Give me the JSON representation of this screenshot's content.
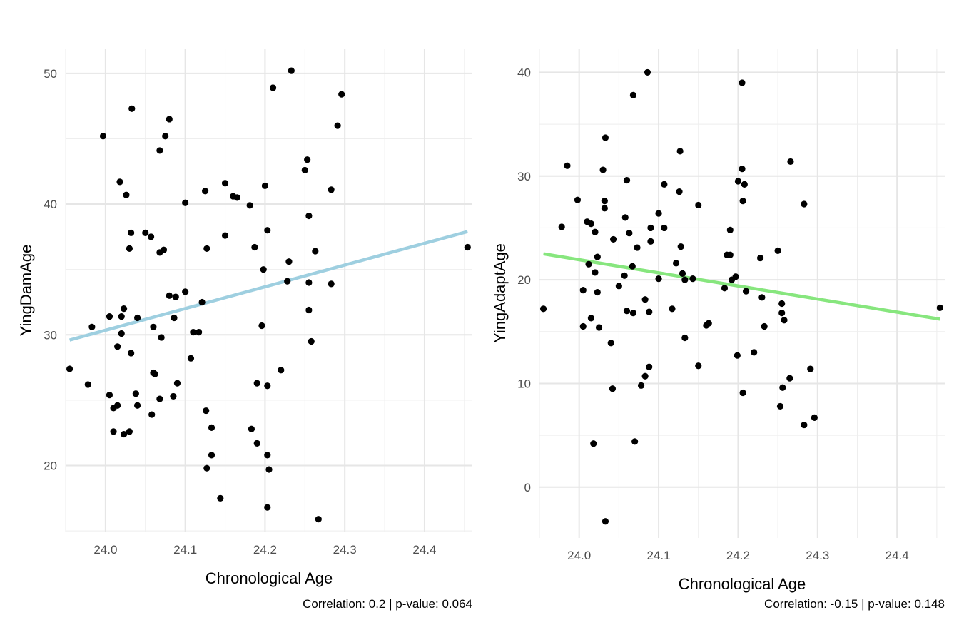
{
  "chart_data": [
    {
      "type": "scatter",
      "xlabel": "Chronological Age",
      "ylabel": "YingDamAge",
      "caption": "Correlation: 0.2 | p-value: 0.064",
      "xlim": [
        23.95,
        24.46
      ],
      "ylim": [
        14.9,
        51.9
      ],
      "x_ticks": [
        "24.0",
        "24.1",
        "24.2",
        "24.3",
        "24.4"
      ],
      "x_tick_values": [
        24.0,
        24.1,
        24.2,
        24.3,
        24.4
      ],
      "y_ticks": [
        "20",
        "30",
        "40",
        "50"
      ],
      "y_tick_values": [
        20,
        30,
        40,
        50
      ],
      "grid": true,
      "fit_line": {
        "color": "#9ecfe0",
        "x": [
          23.955,
          24.454
        ],
        "y": [
          29.6,
          37.9
        ]
      },
      "points": [
        [
          23.955,
          27.4
        ],
        [
          23.978,
          26.2
        ],
        [
          23.983,
          30.6
        ],
        [
          23.997,
          45.2
        ],
        [
          24.005,
          31.4
        ],
        [
          24.005,
          25.4
        ],
        [
          24.01,
          24.4
        ],
        [
          24.01,
          22.6
        ],
        [
          24.015,
          24.6
        ],
        [
          24.015,
          29.1
        ],
        [
          24.018,
          41.7
        ],
        [
          24.02,
          30.1
        ],
        [
          24.02,
          31.4
        ],
        [
          24.023,
          32.0
        ],
        [
          24.023,
          22.4
        ],
        [
          24.026,
          40.7
        ],
        [
          24.03,
          36.6
        ],
        [
          24.03,
          22.6
        ],
        [
          24.032,
          37.8
        ],
        [
          24.032,
          28.6
        ],
        [
          24.033,
          47.3
        ],
        [
          24.038,
          25.5
        ],
        [
          24.04,
          31.3
        ],
        [
          24.04,
          24.6
        ],
        [
          24.05,
          37.8
        ],
        [
          24.057,
          37.5
        ],
        [
          24.058,
          23.9
        ],
        [
          24.06,
          27.1
        ],
        [
          24.06,
          30.6
        ],
        [
          24.062,
          27.0
        ],
        [
          24.068,
          25.1
        ],
        [
          24.068,
          44.1
        ],
        [
          24.068,
          36.3
        ],
        [
          24.07,
          29.8
        ],
        [
          24.073,
          36.5
        ],
        [
          24.075,
          45.2
        ],
        [
          24.08,
          46.5
        ],
        [
          24.08,
          33.0
        ],
        [
          24.085,
          25.3
        ],
        [
          24.086,
          31.3
        ],
        [
          24.088,
          32.9
        ],
        [
          24.09,
          26.3
        ],
        [
          24.1,
          40.1
        ],
        [
          24.1,
          33.3
        ],
        [
          24.107,
          28.2
        ],
        [
          24.11,
          30.2
        ],
        [
          24.117,
          30.2
        ],
        [
          24.121,
          32.5
        ],
        [
          24.125,
          41.0
        ],
        [
          24.126,
          24.2
        ],
        [
          24.127,
          36.6
        ],
        [
          24.127,
          19.8
        ],
        [
          24.133,
          22.9
        ],
        [
          24.133,
          20.8
        ],
        [
          24.144,
          17.5
        ],
        [
          24.15,
          41.6
        ],
        [
          24.15,
          37.6
        ],
        [
          24.16,
          40.6
        ],
        [
          24.165,
          40.5
        ],
        [
          24.181,
          39.9
        ],
        [
          24.183,
          22.8
        ],
        [
          24.187,
          36.7
        ],
        [
          24.19,
          26.3
        ],
        [
          24.19,
          21.7
        ],
        [
          24.196,
          30.7
        ],
        [
          24.198,
          35.0
        ],
        [
          24.2,
          41.4
        ],
        [
          24.203,
          38.0
        ],
        [
          24.203,
          20.8
        ],
        [
          24.203,
          26.1
        ],
        [
          24.205,
          19.7
        ],
        [
          24.203,
          16.8
        ],
        [
          24.21,
          48.9
        ],
        [
          24.22,
          27.3
        ],
        [
          24.228,
          34.1
        ],
        [
          24.23,
          35.6
        ],
        [
          24.233,
          50.2
        ],
        [
          24.25,
          42.6
        ],
        [
          24.253,
          43.4
        ],
        [
          24.255,
          39.1
        ],
        [
          24.255,
          34.0
        ],
        [
          24.255,
          31.9
        ],
        [
          24.258,
          29.5
        ],
        [
          24.263,
          36.4
        ],
        [
          24.267,
          15.9
        ],
        [
          24.283,
          41.1
        ],
        [
          24.283,
          33.9
        ],
        [
          24.291,
          46.0
        ],
        [
          24.296,
          48.4
        ],
        [
          24.454,
          36.7
        ]
      ]
    },
    {
      "type": "scatter",
      "xlabel": "Chronological Age",
      "ylabel": "YingAdaptAge",
      "caption": "Correlation: -0.15 | p-value: 0.148",
      "xlim": [
        23.95,
        24.46
      ],
      "ylim": [
        -4.9,
        42.3
      ],
      "x_ticks": [
        "24.0",
        "24.1",
        "24.2",
        "24.3",
        "24.4"
      ],
      "x_tick_values": [
        24.0,
        24.1,
        24.2,
        24.3,
        24.4
      ],
      "y_ticks": [
        "0",
        "10",
        "20",
        "30",
        "40"
      ],
      "y_tick_values": [
        0,
        10,
        20,
        30,
        40
      ],
      "grid": true,
      "fit_line": {
        "color": "#87e67e",
        "x": [
          23.955,
          24.454
        ],
        "y": [
          22.5,
          16.2
        ]
      },
      "points": [
        [
          23.955,
          17.2
        ],
        [
          23.978,
          25.1
        ],
        [
          23.985,
          31.0
        ],
        [
          23.998,
          27.7
        ],
        [
          24.005,
          19.0
        ],
        [
          24.005,
          15.5
        ],
        [
          24.01,
          25.6
        ],
        [
          24.012,
          21.5
        ],
        [
          24.015,
          25.4
        ],
        [
          24.015,
          16.3
        ],
        [
          24.018,
          4.2
        ],
        [
          24.02,
          24.6
        ],
        [
          24.02,
          20.7
        ],
        [
          24.023,
          22.2
        ],
        [
          24.023,
          18.8
        ],
        [
          24.025,
          15.4
        ],
        [
          24.03,
          30.6
        ],
        [
          24.032,
          27.6
        ],
        [
          24.032,
          26.9
        ],
        [
          24.033,
          33.7
        ],
        [
          24.033,
          -3.3
        ],
        [
          24.04,
          13.9
        ],
        [
          24.042,
          9.5
        ],
        [
          24.043,
          23.9
        ],
        [
          24.05,
          19.4
        ],
        [
          24.057,
          20.4
        ],
        [
          24.058,
          26.0
        ],
        [
          24.06,
          29.6
        ],
        [
          24.06,
          17.0
        ],
        [
          24.063,
          24.5
        ],
        [
          24.067,
          21.3
        ],
        [
          24.068,
          37.8
        ],
        [
          24.068,
          16.8
        ],
        [
          24.07,
          4.4
        ],
        [
          24.073,
          23.1
        ],
        [
          24.078,
          9.8
        ],
        [
          24.083,
          18.1
        ],
        [
          24.083,
          10.7
        ],
        [
          24.086,
          40.0
        ],
        [
          24.088,
          11.6
        ],
        [
          24.088,
          16.9
        ],
        [
          24.09,
          23.7
        ],
        [
          24.09,
          25.0
        ],
        [
          24.1,
          26.4
        ],
        [
          24.1,
          20.1
        ],
        [
          24.107,
          29.2
        ],
        [
          24.107,
          25.0
        ],
        [
          24.117,
          17.2
        ],
        [
          24.122,
          21.6
        ],
        [
          24.126,
          28.5
        ],
        [
          24.127,
          32.4
        ],
        [
          24.128,
          23.2
        ],
        [
          24.13,
          20.6
        ],
        [
          24.133,
          20.0
        ],
        [
          24.133,
          14.4
        ],
        [
          24.143,
          20.1
        ],
        [
          24.15,
          27.2
        ],
        [
          24.15,
          11.7
        ],
        [
          24.16,
          15.6
        ],
        [
          24.163,
          15.8
        ],
        [
          24.183,
          19.2
        ],
        [
          24.186,
          22.4
        ],
        [
          24.19,
          22.4
        ],
        [
          24.19,
          24.8
        ],
        [
          24.192,
          20.0
        ],
        [
          24.197,
          20.3
        ],
        [
          24.199,
          12.7
        ],
        [
          24.2,
          29.5
        ],
        [
          24.205,
          39.0
        ],
        [
          24.205,
          30.7
        ],
        [
          24.206,
          27.6
        ],
        [
          24.206,
          9.1
        ],
        [
          24.208,
          29.2
        ],
        [
          24.21,
          18.9
        ],
        [
          24.22,
          13.0
        ],
        [
          24.228,
          22.1
        ],
        [
          24.23,
          18.3
        ],
        [
          24.233,
          15.5
        ],
        [
          24.25,
          22.8
        ],
        [
          24.253,
          7.8
        ],
        [
          24.255,
          17.7
        ],
        [
          24.255,
          16.8
        ],
        [
          24.256,
          9.6
        ],
        [
          24.258,
          16.1
        ],
        [
          24.265,
          10.5
        ],
        [
          24.266,
          31.4
        ],
        [
          24.283,
          27.3
        ],
        [
          24.283,
          6.0
        ],
        [
          24.291,
          11.4
        ],
        [
          24.296,
          6.7
        ],
        [
          24.454,
          17.3
        ]
      ]
    }
  ]
}
